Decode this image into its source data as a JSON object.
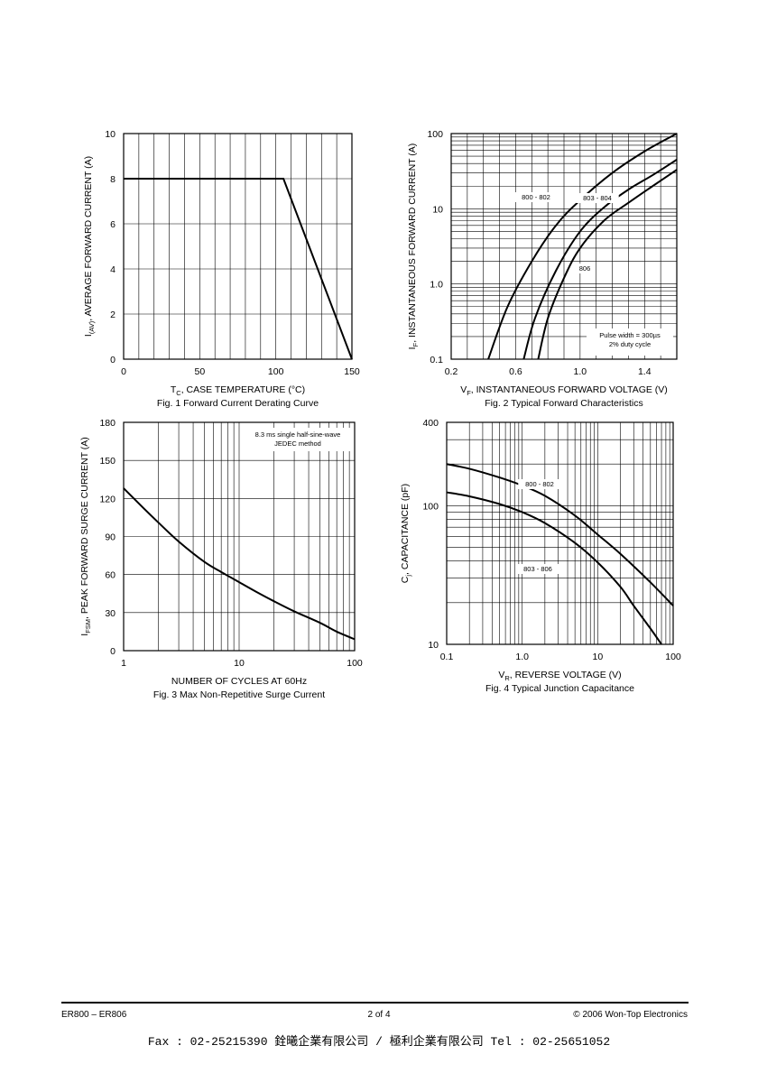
{
  "chart_data": [
    {
      "type": "line",
      "title": "Fig. 1  Forward Current Derating Curve",
      "ylabel": {
        "main": "I",
        "sub": "(AV)",
        "rest": ", AVERAGE FORWARD CURRENT (A)"
      },
      "xlabel": {
        "main": "T",
        "sub": "C",
        "rest": ", CASE TEMPERATURE (°C)"
      },
      "xlim": [
        0,
        150
      ],
      "ylim": [
        0,
        10
      ],
      "xticks": [
        "0",
        "50",
        "100",
        "150"
      ],
      "xtick_values": [
        0,
        50,
        100,
        150
      ],
      "yticks": [
        "0",
        "2",
        "4",
        "6",
        "8",
        "10"
      ],
      "ytick_values": [
        0,
        2,
        4,
        6,
        8,
        10
      ],
      "grid": true,
      "series": [
        {
          "x": [
            0,
            105,
            150
          ],
          "y": [
            8,
            8,
            0
          ]
        }
      ]
    },
    {
      "type": "line",
      "title": "Fig. 2  Typical Forward Characteristics",
      "ylabel": {
        "main": "I",
        "sub": "F",
        "rest": ", INSTANTANEOUS FORWARD CURRENT (A)"
      },
      "xlabel": {
        "main": "V",
        "sub": "F",
        "rest": ", INSTANTANEOUS FORWARD VOLTAGE (V)"
      },
      "xlim": [
        0.2,
        1.6
      ],
      "ylim": [
        0.1,
        100
      ],
      "yscale": "log",
      "xticks": [
        "0.2",
        "0.6",
        "1.0",
        "1.4"
      ],
      "xtick_values": [
        0.2,
        0.6,
        1.0,
        1.4
      ],
      "yticks": [
        "0.1",
        "1.0",
        "10",
        "100"
      ],
      "ytick_values": [
        0.1,
        1,
        10,
        100
      ],
      "grid": true,
      "note": [
        "Pulse width = 300µs",
        "2% duty cycle"
      ],
      "series": [
        {
          "name": "800 - 802",
          "x": [
            0.43,
            0.55,
            0.7,
            0.85,
            1.0,
            1.2,
            1.4,
            1.6
          ],
          "y": [
            0.1,
            0.5,
            2,
            6,
            13,
            30,
            58,
            100
          ]
        },
        {
          "name": "803 - 804",
          "x": [
            0.65,
            0.72,
            0.85,
            1.0,
            1.15,
            1.3,
            1.45,
            1.6
          ],
          "y": [
            0.1,
            0.35,
            1.5,
            5,
            10.5,
            18,
            28,
            45
          ]
        },
        {
          "name": "806",
          "x": [
            0.74,
            0.8,
            0.9,
            1.0,
            1.15,
            1.3,
            1.45,
            1.6
          ],
          "y": [
            0.1,
            0.35,
            1.2,
            3,
            7,
            12,
            20,
            33
          ]
        }
      ]
    },
    {
      "type": "line",
      "title": "Fig. 3  Max Non-Repetitive Surge Current",
      "ylabel": {
        "main": "I",
        "sub": "FSM",
        "rest": ", PEAK FORWARD SURGE CURRENT (A)"
      },
      "xlabel": {
        "main": "NUMBER OF CYCLES AT 60Hz",
        "sub": "",
        "rest": ""
      },
      "xlim": [
        1,
        100
      ],
      "xscale": "log",
      "ylim": [
        0,
        180
      ],
      "xticks": [
        "1",
        "10",
        "100"
      ],
      "xtick_values": [
        1,
        10,
        100
      ],
      "yticks": [
        "0",
        "30",
        "60",
        "90",
        "120",
        "150",
        "180"
      ],
      "ytick_values": [
        0,
        30,
        60,
        90,
        120,
        150,
        180
      ],
      "grid": true,
      "note": [
        "8.3 ms single half-sine-wave",
        "JEDEC method"
      ],
      "series": [
        {
          "x": [
            1,
            1.5,
            2,
            3,
            5,
            7,
            10,
            15,
            20,
            30,
            50,
            70,
            100
          ],
          "y": [
            128,
            112,
            101,
            86,
            70,
            62,
            54,
            45,
            39,
            31,
            22,
            15,
            9
          ]
        }
      ]
    },
    {
      "type": "line",
      "title": "Fig. 4  Typical Junction Capacitance",
      "ylabel": {
        "main": "C",
        "sub": "j",
        "rest": ", CAPACITANCE (pF)"
      },
      "xlabel": {
        "main": "V",
        "sub": "R",
        "rest": ", REVERSE VOLTAGE (V)"
      },
      "xlim": [
        0.1,
        100
      ],
      "xscale": "log",
      "ylim": [
        10,
        400
      ],
      "yscale": "log",
      "xticks": [
        "0.1",
        "1.0",
        "10",
        "100"
      ],
      "xtick_values": [
        0.1,
        1,
        10,
        100
      ],
      "yticks": [
        "10",
        "100",
        "400"
      ],
      "ytick_values": [
        10,
        100,
        400
      ],
      "grid": true,
      "series": [
        {
          "name": "800 - 802",
          "x": [
            0.1,
            0.2,
            0.5,
            1,
            2,
            5,
            10,
            20,
            50,
            100
          ],
          "y": [
            200,
            185,
            160,
            140,
            118,
            85,
            62,
            45,
            28,
            19
          ]
        },
        {
          "name": "803 - 806",
          "x": [
            0.1,
            0.2,
            0.5,
            1,
            2,
            5,
            10,
            20,
            30,
            50,
            70
          ],
          "y": [
            125,
            117,
            103,
            90,
            75,
            54,
            39,
            26,
            19,
            13,
            10
          ]
        }
      ]
    }
  ],
  "footer": {
    "left": "ER800 – ER806",
    "center": "2 of 4",
    "right": "© 2006 Won-Top Electronics",
    "fax_line": "Fax : 02-25215390   銓曦企業有限公司 / 極利企業有限公司   Tel : 02-25651052"
  }
}
